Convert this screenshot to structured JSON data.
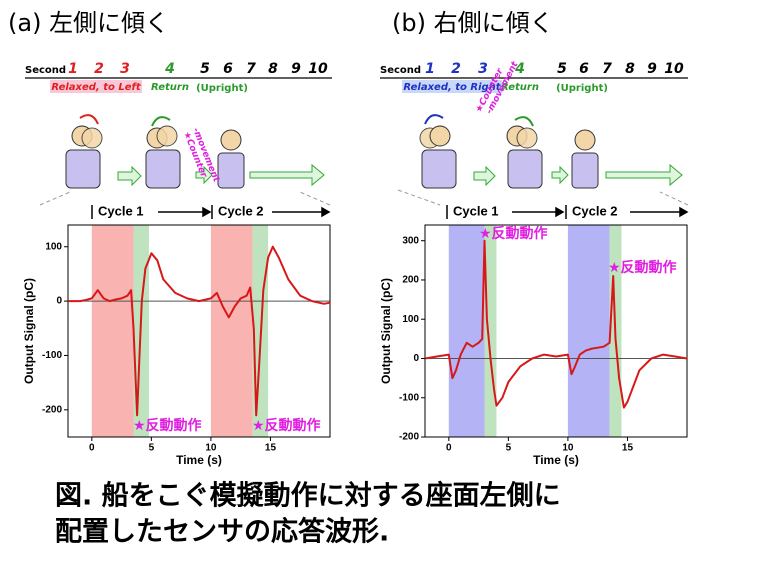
{
  "panels": [
    {
      "heading": "(a) 左側に傾く",
      "second_label": "Second",
      "seconds": [
        1,
        2,
        3,
        4,
        5,
        6,
        7,
        8,
        9,
        10
      ],
      "seconds_colors": [
        "#e02020",
        "#e02020",
        "#e02020",
        "#2a9a2a",
        "#000",
        "#000",
        "#000",
        "#000",
        "#000",
        "#000"
      ],
      "phase": "Relaxed, to Left",
      "return": "Return",
      "upright": "(Upright)",
      "counter": [
        "★Counter",
        "-movement"
      ],
      "cycles": [
        "Cycle 1",
        "Cycle 2"
      ]
    },
    {
      "heading": "(b) 右側に傾く",
      "second_label": "Second",
      "seconds": [
        1,
        2,
        3,
        4,
        5,
        6,
        7,
        8,
        9,
        10
      ],
      "seconds_colors": [
        "#2030c0",
        "#2030c0",
        "#2030c0",
        "#2a9a2a",
        "#000",
        "#000",
        "#000",
        "#000",
        "#000",
        "#000"
      ],
      "phase": "Relaxed, to Right",
      "return": "Return",
      "upright": "(Upright)",
      "counter": [
        "★Counter",
        "-movement"
      ],
      "cycles": [
        "Cycle 1",
        "Cycle 2"
      ]
    }
  ],
  "chart_data": [
    {
      "type": "line",
      "xlabel": "Time (s)",
      "ylabel": "Output Signal (pC)",
      "color": "#d81818",
      "xlim": [
        -2,
        20
      ],
      "ylim": [
        -250,
        140
      ],
      "xticks": [
        0,
        5,
        10,
        15
      ],
      "yticks": [
        -200,
        -100,
        0,
        100
      ],
      "zero_line": true,
      "regions": [
        {
          "from": 0,
          "to": 3.5,
          "color": "#f9b3b0"
        },
        {
          "from": 3.5,
          "to": 4.8,
          "color": "#bfe3bf"
        },
        {
          "from": 10,
          "to": 13.5,
          "color": "#f9b3b0"
        },
        {
          "from": 13.5,
          "to": 14.8,
          "color": "#bfe3bf"
        }
      ],
      "annotations": [
        "★反動動作",
        "★反動動作"
      ],
      "x": [
        -2,
        -1,
        -0.5,
        0,
        0.5,
        1,
        1.5,
        2,
        2.5,
        3,
        3.3,
        3.5,
        3.8,
        4,
        4.2,
        4.5,
        5,
        5.5,
        6,
        7,
        8,
        9,
        10,
        10.5,
        11,
        11.5,
        12,
        12.5,
        13,
        13.3,
        13.6,
        13.8,
        14.1,
        14.4,
        14.8,
        15.2,
        15.7,
        16.5,
        17.5,
        18.5,
        19.5,
        20
      ],
      "values": [
        0,
        0,
        2,
        5,
        20,
        5,
        0,
        3,
        5,
        10,
        20,
        -50,
        -210,
        -100,
        0,
        60,
        88,
        75,
        40,
        15,
        5,
        0,
        5,
        15,
        -10,
        -30,
        -10,
        5,
        10,
        25,
        -50,
        -210,
        -100,
        20,
        80,
        100,
        80,
        40,
        10,
        0,
        -5,
        -3
      ]
    },
    {
      "type": "line",
      "xlabel": "Time (s)",
      "ylabel": "Output Signal (pC)",
      "color": "#d81818",
      "xlim": [
        -2,
        20
      ],
      "ylim": [
        -200,
        340
      ],
      "xticks": [
        0,
        5,
        10,
        15
      ],
      "yticks": [
        -200,
        -100,
        0,
        100,
        200,
        300
      ],
      "zero_line": true,
      "regions": [
        {
          "from": 0,
          "to": 3,
          "color": "#b3b3f5"
        },
        {
          "from": 3,
          "to": 4,
          "color": "#bfe3bf"
        },
        {
          "from": 10,
          "to": 13.5,
          "color": "#b3b3f5"
        },
        {
          "from": 13.5,
          "to": 14.5,
          "color": "#bfe3bf"
        }
      ],
      "annotations": [
        "★反動動作",
        "★反動動作"
      ],
      "x": [
        -2,
        -1,
        0,
        0.3,
        0.6,
        1,
        1.5,
        2,
        2.5,
        2.8,
        3,
        3.2,
        3.5,
        3.8,
        4,
        4.5,
        5,
        6,
        7,
        8,
        9,
        10,
        10.3,
        10.6,
        11,
        11.5,
        12,
        13,
        13.5,
        13.8,
        14,
        14.3,
        14.7,
        15,
        16,
        17,
        18,
        19,
        20
      ],
      "values": [
        0,
        5,
        10,
        -50,
        -30,
        10,
        40,
        30,
        40,
        50,
        300,
        100,
        0,
        -80,
        -120,
        -100,
        -60,
        -20,
        0,
        10,
        5,
        10,
        -40,
        -20,
        10,
        20,
        25,
        30,
        40,
        210,
        50,
        -50,
        -125,
        -110,
        -30,
        0,
        10,
        5,
        0
      ]
    }
  ],
  "caption": [
    "図.  船をこぐ模擬動作に対する座面左側に",
    "配置したセンサの応答波形."
  ]
}
